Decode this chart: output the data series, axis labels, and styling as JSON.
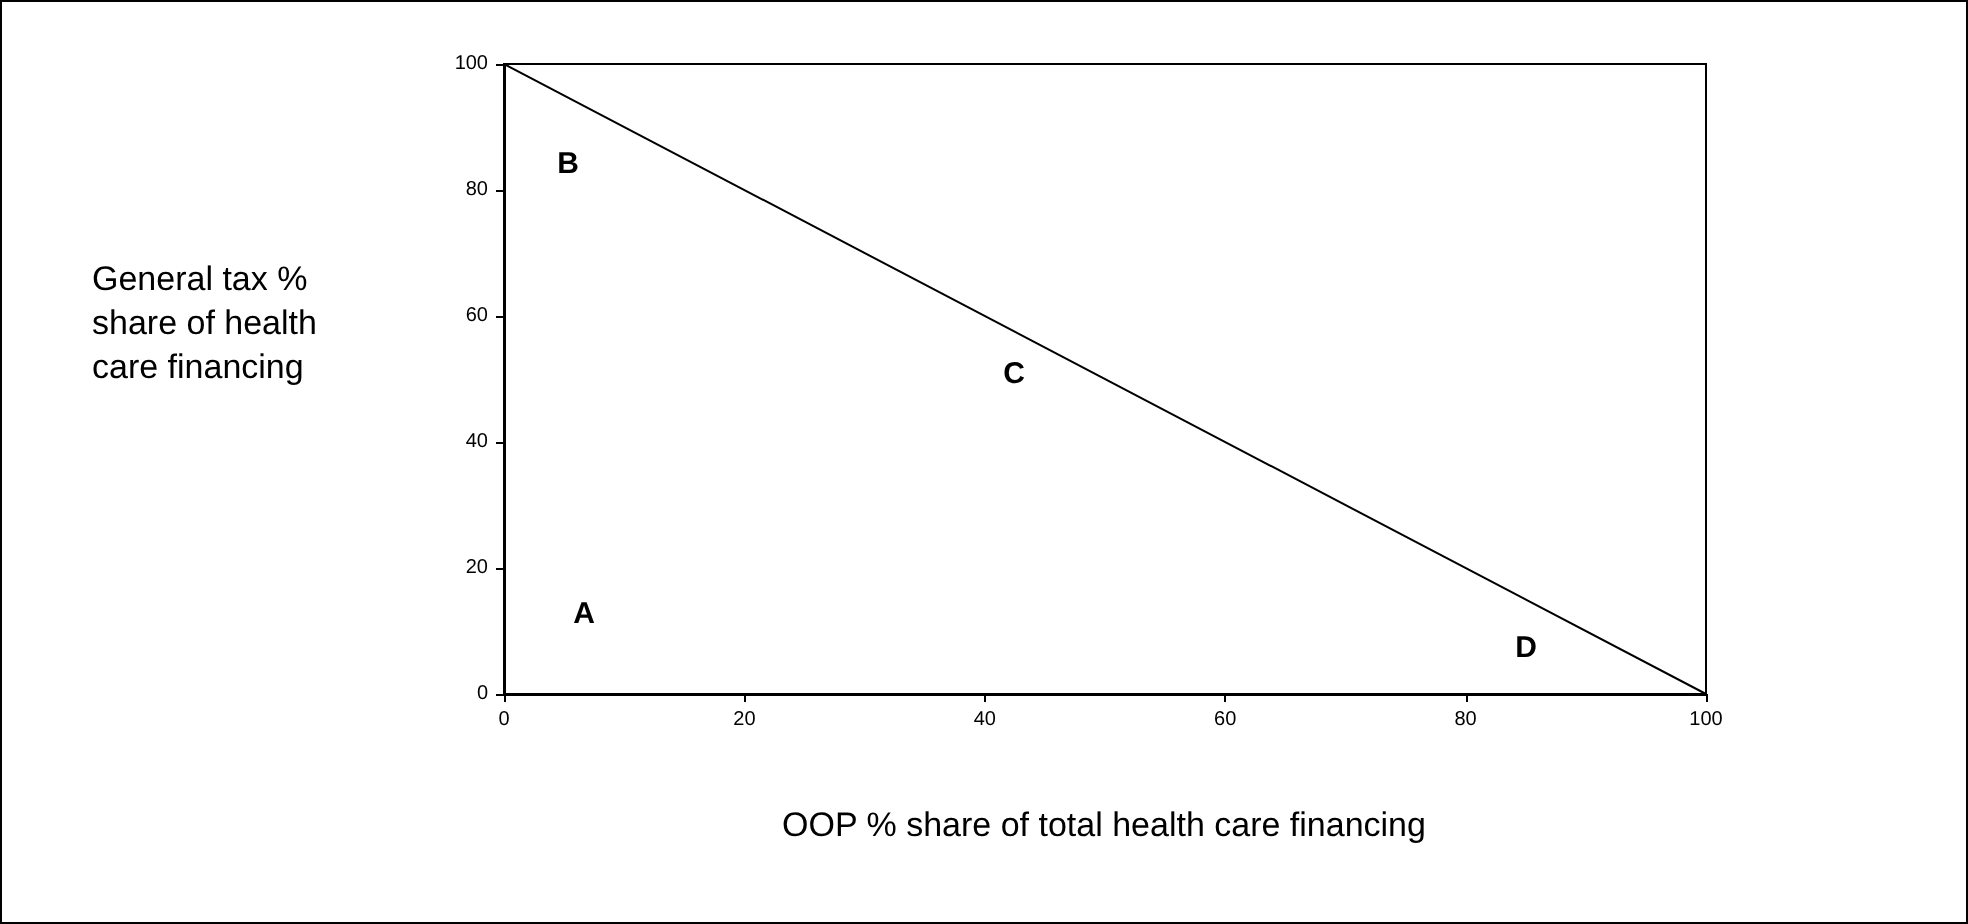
{
  "chart_data": {
    "type": "line",
    "xlabel": "OOP % share of total health care financing",
    "ylabel": "General tax % share of health care financing",
    "x": [
      0,
      100
    ],
    "series": [
      {
        "color": "#000000",
        "values": [
          100,
          0
        ]
      }
    ],
    "xlim": [
      0,
      100
    ],
    "ylim": [
      0,
      100
    ],
    "xticks": [
      0,
      20,
      40,
      60,
      80,
      100
    ],
    "yticks": [
      0,
      20,
      40,
      60,
      80,
      100
    ],
    "annotations": [
      "A",
      "B",
      "C",
      "D"
    ],
    "grid": false,
    "marker": "none",
    "line_style": "solid"
  }
}
